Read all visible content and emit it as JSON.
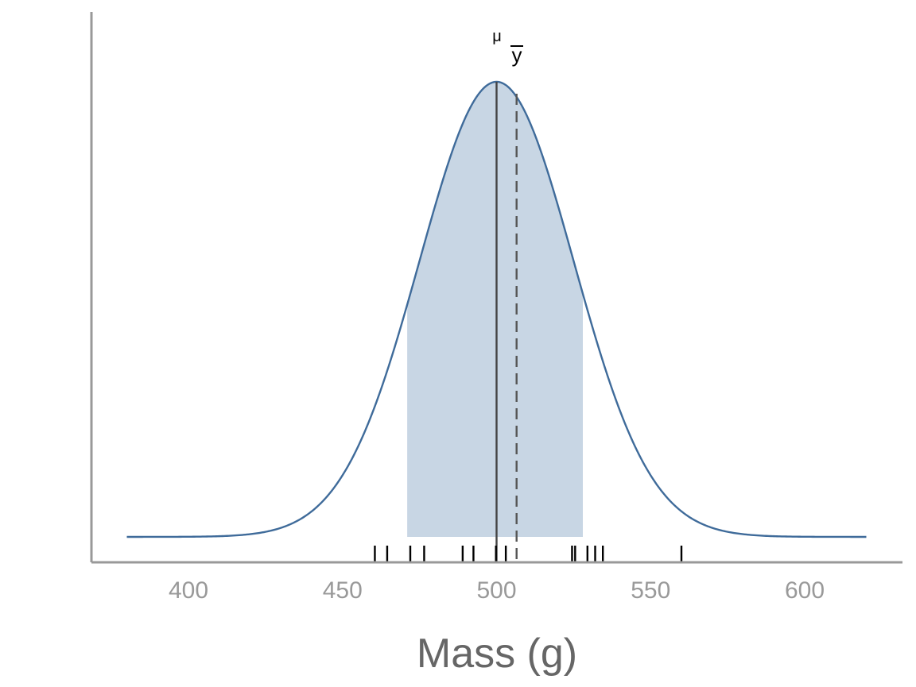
{
  "chart_data": {
    "type": "area",
    "xlabel": "Mass (g)",
    "ylabel": "",
    "xlim": [
      370,
      633
    ],
    "x_ticks": [
      400,
      450,
      500,
      550,
      600
    ],
    "x_tick_labels": [
      "400",
      "450",
      "500",
      "550",
      "600"
    ],
    "distribution": {
      "kind": "normal",
      "mean": 500,
      "sd": 25,
      "x_range": [
        380,
        620
      ]
    },
    "shaded_interval": [
      471,
      528
    ],
    "mu": 500,
    "ybar": 506.5,
    "rug": [
      460.5,
      464.5,
      472,
      476.5,
      489,
      492.5,
      499.8,
      503,
      524.5,
      525.5,
      529.5,
      532,
      534.5,
      560
    ],
    "annotations": {
      "mu_label": "μ",
      "ybar_label": "y"
    },
    "grid": false,
    "legend": "none",
    "colors": {
      "curve": "#3f6b9a",
      "fill": "#c8d6e4",
      "mu_line": "#444444",
      "ybar_line": "#555555",
      "axis": "#999999",
      "rug": "#000000"
    }
  }
}
